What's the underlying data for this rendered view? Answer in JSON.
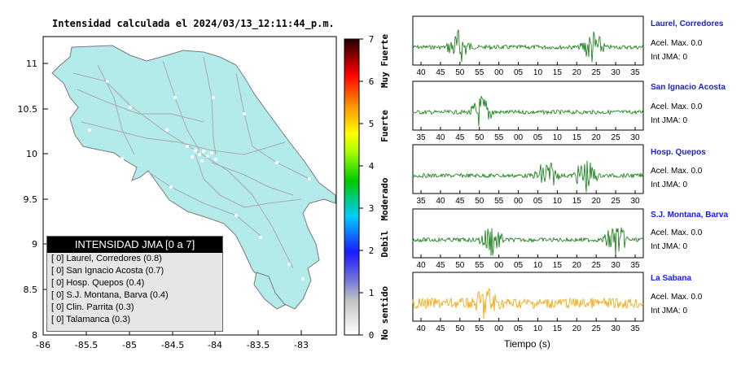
{
  "map": {
    "title": "Intensidad calculada el 2024/03/13_12:11:44_p.m.",
    "x_ticks": [
      "-86",
      "-85.5",
      "-85",
      "-84.5",
      "-84",
      "-83.5",
      "-83"
    ],
    "y_ticks": [
      "11",
      "10.5",
      "10",
      "9.5",
      "9",
      "8.5",
      "8"
    ],
    "colors": {
      "land": "#b3eaea",
      "sea": "#ffffff",
      "roads": "#aaaaaa",
      "border": "#7a7a7a"
    }
  },
  "colorbar": {
    "ticks": [
      "0",
      "1",
      "2",
      "3",
      "4",
      "5",
      "6",
      "7"
    ],
    "category_labels": [
      "No sentido",
      "Debil",
      "Moderado",
      "Fuerte",
      "Muy Fuerte"
    ]
  },
  "legend": {
    "header": "INTENSIDAD JMA [0 a 7]",
    "rows": [
      "[ 0]  Laurel, Corredores (0.8)",
      "[ 0]  San Ignacio Acosta (0.7)",
      "[ 0]  Hosp. Quepos (0.4)",
      "[ 0]  S.J. Montana, Barva (0.4)",
      "[ 0]  Clin. Parrita (0.3)",
      "[ 0]  Talamanca (0.3)"
    ]
  },
  "waveforms": {
    "xlabel": "Tiempo (s)",
    "panels": [
      {
        "name": "Laurel, Corredores",
        "accel": "Acel. Max. 0.0",
        "int": "Int JMA: 0",
        "color": "#0a7a0a",
        "ticks": [
          "40",
          "45",
          "50",
          "55",
          "00",
          "05",
          "10",
          "15",
          "20",
          "25",
          "30",
          "35"
        ],
        "events": [
          0.2,
          0.78
        ]
      },
      {
        "name": "San Ignacio Acosta",
        "accel": "Acel. Max. 0.0",
        "int": "Int JMA: 0",
        "color": "#0a7a0a",
        "ticks": [
          "35",
          "40",
          "45",
          "50",
          "55",
          "00",
          "05",
          "10",
          "15",
          "20",
          "25",
          "30"
        ],
        "events": [
          0.3
        ]
      },
      {
        "name": "Hosp. Quepos",
        "accel": "Acel. Max. 0.0",
        "int": "Int JMA: 0",
        "color": "#0a7a0a",
        "ticks": [
          "35",
          "40",
          "45",
          "50",
          "55",
          "00",
          "05",
          "10",
          "15",
          "20",
          "25",
          "30"
        ],
        "events": [
          0.58,
          0.75
        ]
      },
      {
        "name": "S.J. Montana, Barva",
        "accel": "Acel. Max. 0.0",
        "int": "Int JMA: 0",
        "color": "#0a7a0a",
        "ticks": [
          "40",
          "45",
          "50",
          "55",
          "00",
          "05",
          "10",
          "15",
          "20",
          "25",
          "30",
          "35"
        ],
        "events": [
          0.34,
          0.88
        ]
      },
      {
        "name": "La Sabana",
        "accel": "Acel. Max. 0.0",
        "int": "Int JMA: 0",
        "color": "#f5a300",
        "ticks": [
          "40",
          "45",
          "50",
          "55",
          "00",
          "05",
          "10",
          "15",
          "20",
          "25",
          "30",
          "35"
        ],
        "events": [
          0.32
        ]
      }
    ]
  }
}
